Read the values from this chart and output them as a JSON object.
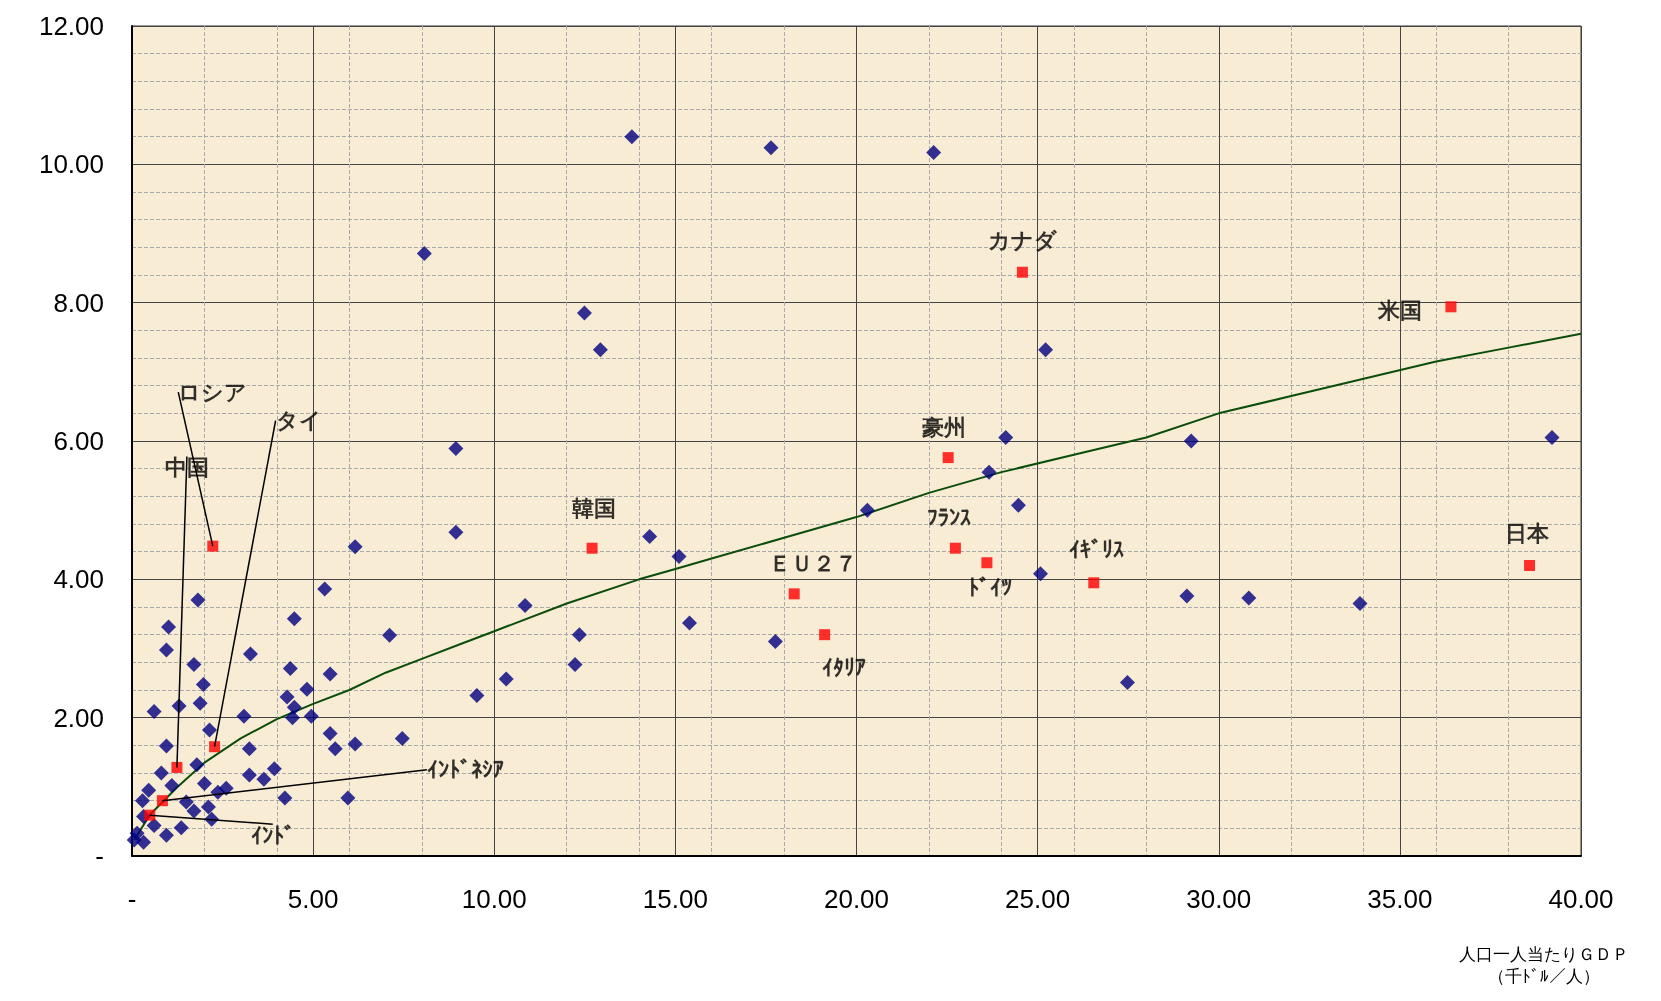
{
  "chart_data": {
    "type": "scatter",
    "xlabel": "人口一人当たりＧＤＰ（千ﾄﾞﾙ／人）",
    "xlim": [
      0,
      40
    ],
    "ylim": [
      0,
      12
    ],
    "xticks": [
      {
        "value": 0,
        "label": "-"
      },
      {
        "value": 5,
        "label": "5.00"
      },
      {
        "value": 10,
        "label": "10.00"
      },
      {
        "value": 15,
        "label": "15.00"
      },
      {
        "value": 20,
        "label": "20.00"
      },
      {
        "value": 25,
        "label": "25.00"
      },
      {
        "value": 30,
        "label": "30.00"
      },
      {
        "value": 35,
        "label": "35.00"
      },
      {
        "value": 40,
        "label": "40.00"
      }
    ],
    "yticks": [
      {
        "value": 0,
        "label": "-"
      },
      {
        "value": 2,
        "label": "2.00"
      },
      {
        "value": 4,
        "label": "4.00"
      },
      {
        "value": 6,
        "label": "6.00"
      },
      {
        "value": 8,
        "label": "8.00"
      },
      {
        "value": 10,
        "label": "10.00"
      },
      {
        "value": 12,
        "label": "12.00"
      }
    ],
    "grid": true,
    "series": [
      {
        "type": "scatter",
        "marker": "diamond",
        "color": "#000080",
        "x": [
          13.8,
          17.64,
          22.13,
          8.07,
          12.49,
          12.93,
          25.22,
          8.94,
          24.12,
          29.24,
          39.2,
          23.66,
          24.47,
          20.3,
          8.94,
          6.16,
          14.29,
          15.1,
          25.08,
          5.32,
          10.85,
          4.48,
          1.82,
          1.01,
          15.39,
          29.12,
          30.83,
          33.9,
          7.11,
          12.35,
          17.76,
          0.95,
          3.27,
          12.23,
          1.71,
          4.37,
          5.47,
          1.97,
          27.48,
          10.33,
          9.52,
          4.28,
          4.83,
          1.88,
          1.3,
          0.61,
          4.48,
          4.95,
          3.09,
          4.43,
          2.14,
          5.47,
          7.46,
          6.16,
          5.61,
          3.24,
          0.95,
          1.79,
          3.93,
          3.24,
          3.64,
          0.81,
          1.1,
          2.0,
          2.6,
          2.37,
          4.22,
          5.96,
          0.46,
          1.5,
          2.11,
          1.71,
          2.2,
          1.36,
          0.95,
          0.29,
          0.32,
          0.14,
          0.32,
          0.61,
          0.06
        ],
        "values": [
          10.4,
          10.24,
          10.17,
          8.71,
          7.85,
          7.32,
          7.32,
          5.89,
          6.05,
          6.0,
          6.05,
          5.55,
          5.07,
          5.0,
          4.68,
          4.47,
          4.62,
          4.33,
          4.08,
          3.86,
          3.62,
          3.43,
          3.7,
          3.31,
          3.37,
          3.76,
          3.73,
          3.65,
          3.19,
          3.2,
          3.1,
          2.98,
          2.92,
          2.77,
          2.77,
          2.71,
          2.63,
          2.48,
          2.51,
          2.56,
          2.32,
          2.3,
          2.41,
          2.21,
          2.17,
          2.09,
          2.15,
          2.02,
          2.02,
          2.0,
          1.82,
          1.77,
          1.7,
          1.62,
          1.55,
          1.55,
          1.59,
          1.32,
          1.26,
          1.17,
          1.11,
          1.2,
          1.02,
          1.05,
          0.98,
          0.92,
          0.84,
          0.84,
          0.95,
          0.78,
          0.71,
          0.65,
          0.53,
          0.41,
          0.3,
          0.8,
          0.57,
          0.33,
          0.2,
          0.44,
          0.23
        ]
      },
      {
        "type": "scatter",
        "marker": "square",
        "color": "#ff0000",
        "x": [
          2.23,
          2.28,
          1.24,
          0.84,
          0.49,
          12.7,
          18.28,
          19.12,
          22.53,
          22.73,
          23.6,
          24.58,
          26.55,
          36.41,
          38.58
        ],
        "values": [
          4.48,
          1.58,
          1.28,
          0.8,
          0.59,
          4.45,
          3.79,
          3.2,
          5.76,
          4.45,
          4.24,
          8.44,
          3.95,
          7.94,
          4.2
        ]
      },
      {
        "type": "line",
        "marker": "none",
        "color": "#0b4d0b",
        "x": [
          0.06,
          0.5,
          1.24,
          2,
          3,
          4,
          5,
          6,
          7,
          8,
          9,
          10,
          12,
          14,
          15,
          16,
          18,
          20,
          22,
          24,
          26,
          28,
          30,
          32,
          34,
          36,
          38,
          40
        ],
        "values": [
          0.23,
          0.6,
          0.99,
          1.35,
          1.7,
          1.98,
          2.2,
          2.4,
          2.65,
          2.85,
          3.05,
          3.25,
          3.65,
          4.0,
          4.15,
          4.3,
          4.6,
          4.9,
          5.25,
          5.55,
          5.8,
          6.05,
          6.4,
          6.65,
          6.9,
          7.15,
          7.35,
          7.55
        ]
      }
    ],
    "annotations": [
      {
        "text": "ロシア",
        "x": 2.23,
        "y": 4.48
      },
      {
        "text": "タイ",
        "x": 2.28,
        "y": 1.58
      },
      {
        "text": "中国",
        "x": 1.24,
        "y": 1.28
      },
      {
        "text": "ｲﾝﾄﾞﾈｼｱ",
        "x": 0.84,
        "y": 0.8
      },
      {
        "text": "ｲﾝﾄﾞ",
        "x": 0.49,
        "y": 0.59
      },
      {
        "text": "韓国",
        "x": 12.7,
        "y": 4.45
      },
      {
        "text": "ＥＵ２７",
        "x": 18.28,
        "y": 3.79
      },
      {
        "text": "ｲﾀﾘｱ",
        "x": 19.12,
        "y": 3.2
      },
      {
        "text": "豪州",
        "x": 22.53,
        "y": 5.76
      },
      {
        "text": "ﾌﾗﾝｽ",
        "x": 22.73,
        "y": 4.45
      },
      {
        "text": "ﾄﾞｲﾂ",
        "x": 23.6,
        "y": 4.24
      },
      {
        "text": "カナダ",
        "x": 24.58,
        "y": 8.44
      },
      {
        "text": "ｲｷﾞﾘｽ",
        "x": 26.55,
        "y": 3.95
      },
      {
        "text": "米国",
        "x": 36.41,
        "y": 7.94
      },
      {
        "text": "日本",
        "x": 38.58,
        "y": 4.2
      }
    ]
  }
}
